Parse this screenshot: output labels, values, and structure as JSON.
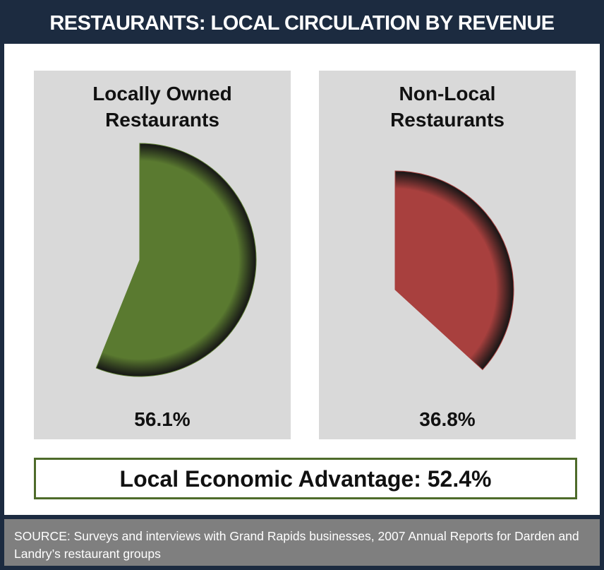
{
  "header": {
    "title": "RESTAURANTS: LOCAL CIRCULATION BY REVENUE"
  },
  "chart_data": [
    {
      "type": "pie",
      "title": "Locally Owned Restaurants",
      "values": [
        56.1
      ],
      "value_labels": [
        "56.1%"
      ],
      "color": "#5a7a30"
    },
    {
      "type": "pie",
      "title": "Non-Local Restaurants",
      "values": [
        36.8
      ],
      "value_labels": [
        "36.8%"
      ],
      "color": "#a8403e"
    }
  ],
  "advantage": "Local Economic Advantage: 52.4%",
  "source": "SOURCE: Surveys and interviews with Grand Rapids businesses, 2007 Annual Reports for Darden and Landry’s restaurant groups"
}
